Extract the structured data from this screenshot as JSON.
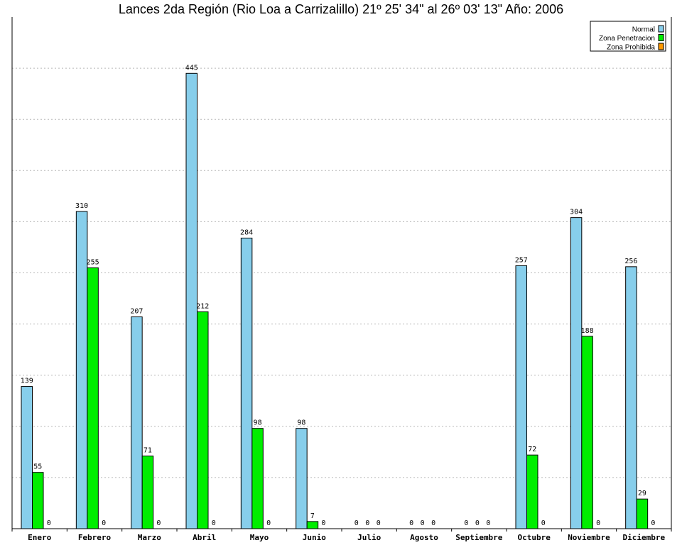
{
  "chart_data": {
    "type": "bar",
    "title": "Lances 2da Región (Rio Loa a Carrizalillo) 21º 25' 34\" al 26º 03' 13\" Año: 2006",
    "categories": [
      "Enero",
      "Febrero",
      "Marzo",
      "Abril",
      "Mayo",
      "Junio",
      "Julio",
      "Agosto",
      "Septiembre",
      "Octubre",
      "Noviembre",
      "Diciembre"
    ],
    "series": [
      {
        "name": "Normal",
        "color": "#87ceeb",
        "values": [
          139,
          310,
          207,
          445,
          284,
          98,
          0,
          0,
          0,
          257,
          304,
          256
        ]
      },
      {
        "name": "Zona Penetracion",
        "color": "#00ee00",
        "values": [
          55,
          255,
          71,
          212,
          98,
          7,
          0,
          0,
          0,
          72,
          188,
          29
        ]
      },
      {
        "name": "Zona Prohibida",
        "color": "#ff9900",
        "values": [
          0,
          0,
          0,
          0,
          0,
          0,
          0,
          0,
          0,
          0,
          0,
          0
        ]
      }
    ],
    "ylim": [
      0,
      500
    ],
    "grid": true,
    "legend_position": "top-right",
    "xlabel": "",
    "ylabel": ""
  }
}
